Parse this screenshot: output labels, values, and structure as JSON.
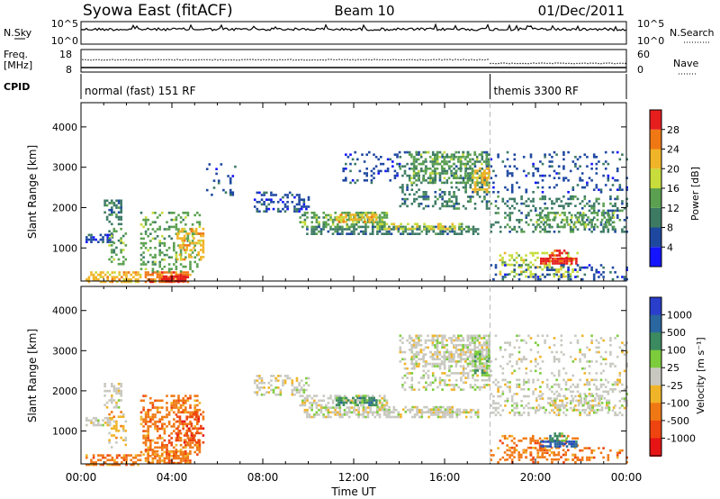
{
  "header": {
    "station": "Syowa East (fitACF)",
    "beam": "Beam 10",
    "date": "01/Dec/2011"
  },
  "top_panels": {
    "nsky_label": "N.Sky",
    "nsky_ticks": [
      "10^5",
      "10^0"
    ],
    "nsearch_label": "N.Search",
    "nsearch_ticks": [
      "10^5",
      "10^0"
    ],
    "freq_label": "Freq.",
    "freq_unit": "[MHz]",
    "freq_ticks": [
      "18",
      "8"
    ],
    "nave_label": "Nave",
    "nave_ticks": [
      "60",
      "0"
    ],
    "cpid_label": "CPID",
    "cpid_segments": [
      {
        "name": "normal (fast) 151 RF",
        "start_hour": 0,
        "end_hour": 18.0
      },
      {
        "name": "themis 3300 RF",
        "start_hour": 18.0,
        "end_hour": 24
      }
    ]
  },
  "axes": {
    "xlabel": "Time UT",
    "ylabel": "Slant Range [km]",
    "xticks": [
      "00:00",
      "04:00",
      "08:00",
      "12:00",
      "16:00",
      "20:00",
      "00:00"
    ],
    "xlim_hours": [
      0,
      24
    ],
    "yticks": [
      "1000",
      "2000",
      "3000",
      "4000"
    ],
    "ylim_km": [
      180,
      4600
    ]
  },
  "colorbars": {
    "power": {
      "label": "Power [dB]",
      "ticks": [
        "4",
        "8",
        "12",
        "16",
        "20",
        "24",
        "28"
      ],
      "colors": [
        "#1414ff",
        "#1e48a0",
        "#3c7a64",
        "#5aa050",
        "#c8dc3c",
        "#f0b428",
        "#f07814",
        "#e61e1e"
      ]
    },
    "velocity": {
      "label": "Velocity [m s⁻¹]",
      "ticks": [
        "1000",
        "500",
        "100",
        "25",
        "-25",
        "-100",
        "-500",
        "-1000"
      ],
      "colors": [
        "#2a3ecc",
        "#2a66a0",
        "#3c8a60",
        "#7ccc3c",
        "#c8c8c0",
        "#f0b428",
        "#f07814",
        "#ee4410",
        "#e61414"
      ]
    }
  },
  "chart_data": [
    {
      "type": "heatmap",
      "name": "Power",
      "units": "dB",
      "xlabel": "Time UT",
      "ylabel": "Slant Range [km]",
      "regions": [
        {
          "t0": 0.2,
          "t1": 1.4,
          "r0": 1150,
          "r1": 1350,
          "level": 1,
          "density": 0.55
        },
        {
          "t0": 0.2,
          "t1": 2.6,
          "r0": 180,
          "r1": 420,
          "level": 5,
          "density": 0.6
        },
        {
          "t0": 2.8,
          "t1": 4.8,
          "r0": 180,
          "r1": 420,
          "level": 6,
          "density": 0.7
        },
        {
          "t0": 3.6,
          "t1": 4.6,
          "r0": 180,
          "r1": 320,
          "level": 7,
          "density": 0.9
        },
        {
          "t0": 1.0,
          "t1": 1.8,
          "r0": 1600,
          "r1": 2200,
          "level": 2,
          "density": 0.55
        },
        {
          "t0": 1.2,
          "t1": 2.0,
          "r0": 600,
          "r1": 1500,
          "level": 3,
          "density": 0.3
        },
        {
          "t0": 2.6,
          "t1": 5.2,
          "r0": 420,
          "r1": 1900,
          "level": 3,
          "density": 0.3
        },
        {
          "t0": 4.2,
          "t1": 5.4,
          "r0": 700,
          "r1": 1500,
          "level": 5,
          "density": 0.4
        },
        {
          "t0": 5.5,
          "t1": 6.8,
          "r0": 2300,
          "r1": 3100,
          "level": 1,
          "density": 0.1
        },
        {
          "t0": 7.6,
          "t1": 10.0,
          "r0": 1900,
          "r1": 2400,
          "level": 1,
          "density": 0.35
        },
        {
          "t0": 9.6,
          "t1": 13.5,
          "r0": 1550,
          "r1": 1900,
          "level": 3,
          "density": 0.5
        },
        {
          "t0": 11.2,
          "t1": 13.0,
          "r0": 1650,
          "r1": 1850,
          "level": 5,
          "density": 0.7
        },
        {
          "t0": 9.8,
          "t1": 17.5,
          "r0": 1350,
          "r1": 1550,
          "level": 2,
          "density": 0.55
        },
        {
          "t0": 13.0,
          "t1": 16.8,
          "r0": 1450,
          "r1": 1620,
          "level": 4,
          "density": 0.45
        },
        {
          "t0": 14.0,
          "t1": 18.0,
          "r0": 2000,
          "r1": 3400,
          "level": 2,
          "density": 0.3
        },
        {
          "t0": 14.5,
          "t1": 18.0,
          "r0": 2600,
          "r1": 3400,
          "level": 3,
          "density": 0.35
        },
        {
          "t0": 11.5,
          "t1": 14.0,
          "r0": 2600,
          "r1": 3400,
          "level": 1,
          "density": 0.2
        },
        {
          "t0": 17.2,
          "t1": 18.0,
          "r0": 2400,
          "r1": 3000,
          "level": 5,
          "density": 0.5
        },
        {
          "t0": 18.0,
          "t1": 24.0,
          "r0": 1400,
          "r1": 2300,
          "level": 2,
          "density": 0.3
        },
        {
          "t0": 20.0,
          "t1": 23.4,
          "r0": 1500,
          "r1": 1900,
          "level": 3,
          "density": 0.35
        },
        {
          "t0": 18.4,
          "t1": 21.8,
          "r0": 300,
          "r1": 900,
          "level": 4,
          "density": 0.35
        },
        {
          "t0": 20.2,
          "t1": 21.8,
          "r0": 620,
          "r1": 760,
          "level": 7,
          "density": 0.8
        },
        {
          "t0": 20.6,
          "t1": 21.4,
          "r0": 780,
          "r1": 960,
          "level": 7,
          "density": 0.6
        },
        {
          "t0": 18.0,
          "t1": 24.0,
          "r0": 200,
          "r1": 600,
          "level": 1,
          "density": 0.2
        },
        {
          "t0": 18.0,
          "t1": 24.0,
          "r0": 2400,
          "r1": 3400,
          "level": 1,
          "density": 0.15
        }
      ]
    },
    {
      "type": "heatmap",
      "name": "Velocity",
      "units": "m s-1",
      "xlabel": "Time UT",
      "ylabel": "Slant Range [km]",
      "regions": [
        {
          "t0": 0.2,
          "t1": 1.4,
          "r0": 1150,
          "r1": 1350,
          "level": 4,
          "density": 0.55
        },
        {
          "t0": 0.2,
          "t1": 2.6,
          "r0": 180,
          "r1": 420,
          "level": 6,
          "density": 0.6
        },
        {
          "t0": 2.8,
          "t1": 4.8,
          "r0": 180,
          "r1": 520,
          "level": 6,
          "density": 0.7
        },
        {
          "t0": 1.0,
          "t1": 1.8,
          "r0": 1600,
          "r1": 2200,
          "level": 4,
          "density": 0.4
        },
        {
          "t0": 1.2,
          "t1": 2.0,
          "r0": 600,
          "r1": 1500,
          "level": 5,
          "density": 0.3
        },
        {
          "t0": 2.6,
          "t1": 5.2,
          "r0": 420,
          "r1": 1900,
          "level": 6,
          "density": 0.45
        },
        {
          "t0": 4.2,
          "t1": 5.4,
          "r0": 700,
          "r1": 1500,
          "level": 7,
          "density": 0.4
        },
        {
          "t0": 7.6,
          "t1": 10.0,
          "r0": 1900,
          "r1": 2400,
          "level": 4,
          "density": 0.35
        },
        {
          "t0": 9.6,
          "t1": 13.5,
          "r0": 1550,
          "r1": 1900,
          "level": 4,
          "density": 0.5
        },
        {
          "t0": 11.2,
          "t1": 13.0,
          "r0": 1650,
          "r1": 1850,
          "level": 2,
          "density": 0.7
        },
        {
          "t0": 9.8,
          "t1": 17.5,
          "r0": 1350,
          "r1": 1550,
          "level": 4,
          "density": 0.55
        },
        {
          "t0": 13.0,
          "t1": 16.8,
          "r0": 1450,
          "r1": 1620,
          "level": 4,
          "density": 0.45
        },
        {
          "t0": 14.0,
          "t1": 18.0,
          "r0": 2000,
          "r1": 3400,
          "level": 4,
          "density": 0.3
        },
        {
          "t0": 14.5,
          "t1": 18.0,
          "r0": 2600,
          "r1": 3400,
          "level": 4,
          "density": 0.35
        },
        {
          "t0": 17.2,
          "t1": 18.0,
          "r0": 2400,
          "r1": 3000,
          "level": 3,
          "density": 0.5
        },
        {
          "t0": 18.0,
          "t1": 24.0,
          "r0": 1400,
          "r1": 2300,
          "level": 4,
          "density": 0.3
        },
        {
          "t0": 20.0,
          "t1": 23.4,
          "r0": 1500,
          "r1": 1900,
          "level": 4,
          "density": 0.35
        },
        {
          "t0": 18.4,
          "t1": 21.8,
          "r0": 300,
          "r1": 900,
          "level": 6,
          "density": 0.3
        },
        {
          "t0": 20.2,
          "t1": 21.8,
          "r0": 620,
          "r1": 760,
          "level": 1,
          "density": 0.8
        },
        {
          "t0": 20.6,
          "t1": 21.4,
          "r0": 780,
          "r1": 960,
          "level": 2,
          "density": 0.6
        },
        {
          "t0": 18.0,
          "t1": 24.0,
          "r0": 200,
          "r1": 600,
          "level": 6,
          "density": 0.2
        },
        {
          "t0": 18.0,
          "t1": 24.0,
          "r0": 2400,
          "r1": 3400,
          "level": 4,
          "density": 0.15
        }
      ]
    }
  ]
}
